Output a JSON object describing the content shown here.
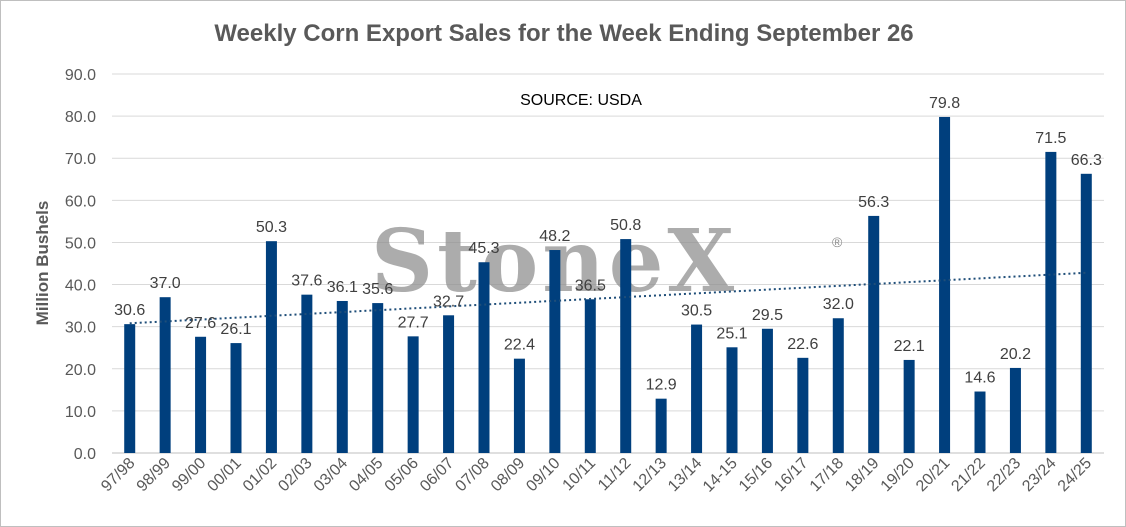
{
  "chart_data": {
    "type": "bar",
    "title": "Weekly Corn Export Sales for the Week Ending September 26",
    "xlabel": "",
    "ylabel": "Million Bushels",
    "ylim": [
      0,
      90
    ],
    "yticks": [
      "0.0",
      "10.0",
      "20.0",
      "30.0",
      "40.0",
      "50.0",
      "60.0",
      "70.0",
      "80.0",
      "90.0"
    ],
    "grid": true,
    "annotation": "SOURCE: USDA",
    "watermark": "StoneX",
    "watermark_mark": "®",
    "bar_color": "#003f7d",
    "trendline": {
      "style": "dotted",
      "color": "#1f4e79",
      "start": 30.8,
      "end": 42.8
    },
    "categories": [
      "97/98",
      "98/99",
      "99/00",
      "00/01",
      "01/02",
      "02/03",
      "03/04",
      "04/05",
      "05/06",
      "06/07",
      "07/08",
      "08/09",
      "09/10",
      "10/11",
      "11/12",
      "12/13",
      "13/14",
      "14-15",
      "15/16",
      "16/17",
      "17/18",
      "18/19",
      "19/20",
      "20/21",
      "21/22",
      "22/23",
      "23/24",
      "24/25"
    ],
    "values": [
      30.6,
      37.0,
      27.6,
      26.1,
      50.3,
      37.6,
      36.1,
      35.6,
      27.7,
      32.7,
      45.3,
      22.4,
      48.2,
      36.5,
      50.8,
      12.9,
      30.5,
      25.1,
      29.5,
      22.6,
      32.0,
      56.3,
      22.1,
      79.8,
      14.6,
      20.2,
      71.5,
      66.3
    ]
  }
}
